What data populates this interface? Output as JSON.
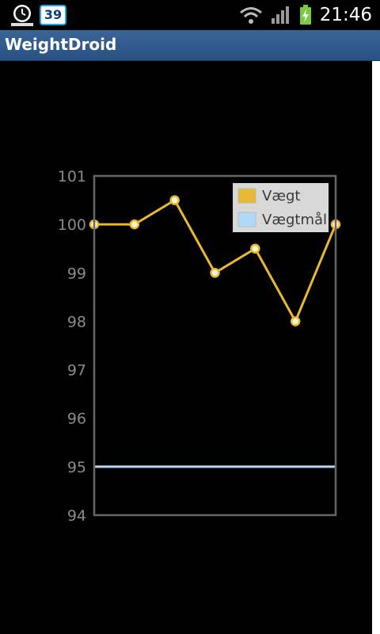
{
  "status_bar": {
    "notification_count": "39",
    "time": "21:46",
    "icons": [
      "clock-app-icon",
      "wifi-icon",
      "signal-icon",
      "battery-charging-icon"
    ]
  },
  "app": {
    "title": "WeightDroid"
  },
  "colors": {
    "title_bar": "#2f5686",
    "series_weight": "#e8b830",
    "series_goal": "#b0d8f8",
    "axis_frame": "#666666",
    "legend_bg": "#d8d8d8"
  },
  "chart_data": {
    "type": "line",
    "ylim": [
      94,
      101
    ],
    "yticks": [
      "94",
      "95",
      "96",
      "97",
      "98",
      "99",
      "100",
      "101"
    ],
    "x": [
      0,
      1,
      2,
      3,
      4,
      5,
      6
    ],
    "grid": false,
    "legend_placement": "top-right",
    "series": [
      {
        "name": "Vægt",
        "values": [
          100,
          100,
          100.5,
          99,
          99.5,
          98,
          100
        ],
        "markers": true
      },
      {
        "name": "Vægtmål",
        "values": [
          95,
          95,
          95,
          95,
          95,
          95,
          95
        ],
        "markers": false
      }
    ]
  }
}
